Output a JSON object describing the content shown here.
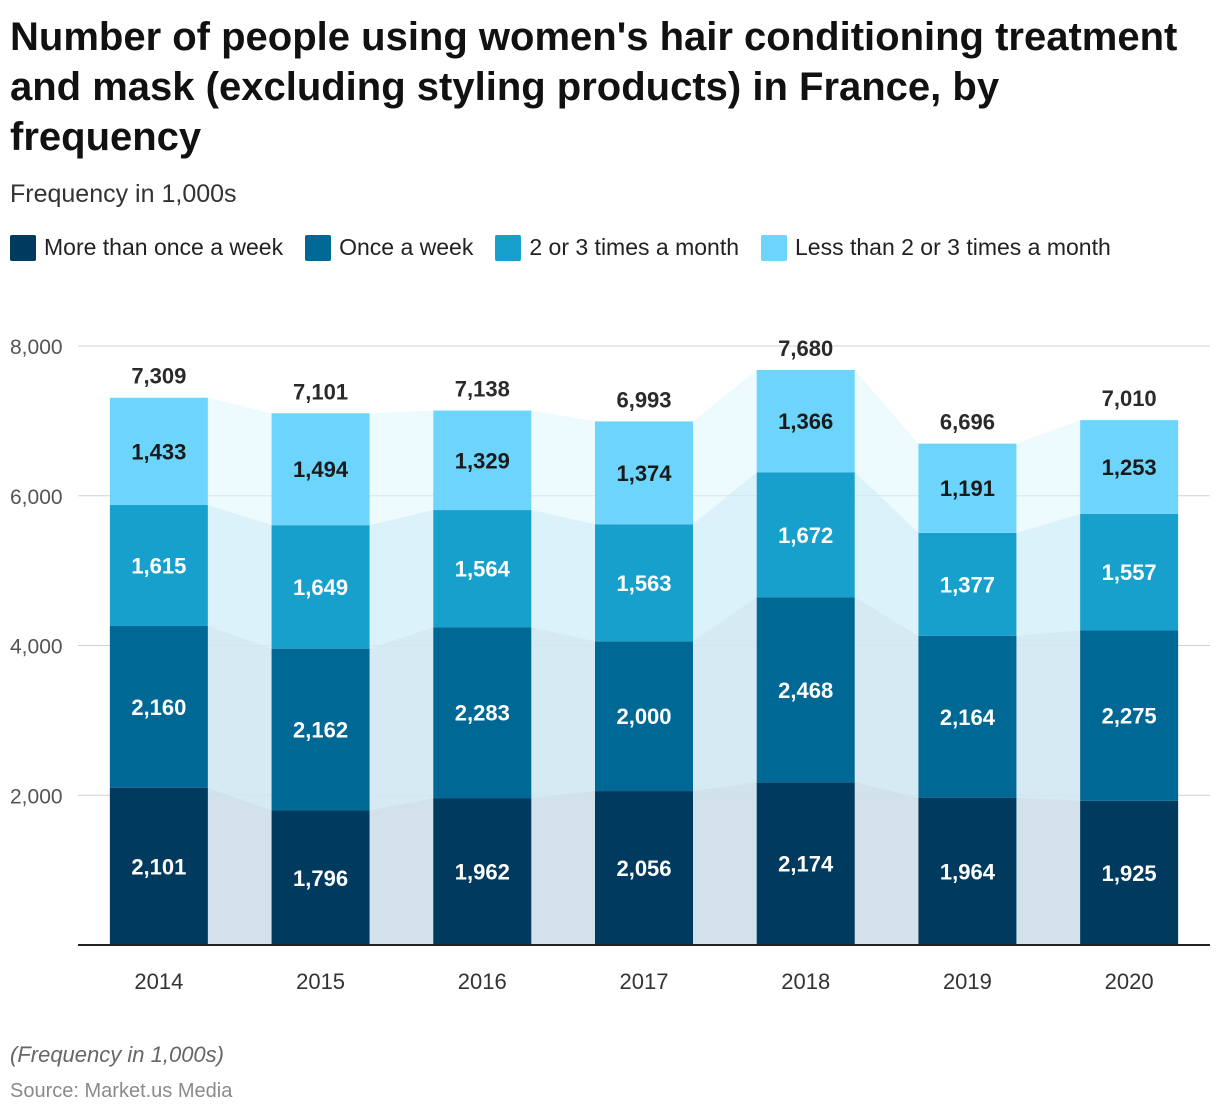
{
  "title": "Number of people using women's hair conditioning treatment and mask (excluding styling products) in France, by frequency",
  "subtitle": "Frequency in 1,000s",
  "note": "(Frequency in 1,000s)",
  "source_label": "Source:",
  "source_name": "Market.us Media",
  "chart_data": {
    "type": "bar",
    "stacked": true,
    "categories": [
      "2014",
      "2015",
      "2016",
      "2017",
      "2018",
      "2019",
      "2020"
    ],
    "series": [
      {
        "name": "More than once a week",
        "color": "#003a5e",
        "values": [
          2101,
          1796,
          1962,
          2056,
          2174,
          1964,
          1925
        ]
      },
      {
        "name": "Once a week",
        "color": "#006894",
        "values": [
          2160,
          2162,
          2283,
          2000,
          2468,
          2164,
          2275
        ]
      },
      {
        "name": "2 or 3 times a month",
        "color": "#18a0cc",
        "values": [
          1615,
          1649,
          1564,
          1563,
          1672,
          1377,
          1557
        ]
      },
      {
        "name": "Less than 2 or 3 times a month",
        "color": "#6dd5fb",
        "values": [
          1433,
          1494,
          1329,
          1374,
          1366,
          1191,
          1253
        ]
      }
    ],
    "totals": [
      7309,
      7101,
      7138,
      6993,
      7680,
      6696,
      7010
    ],
    "y_ticks": [
      2000,
      4000,
      6000,
      8000
    ],
    "ylim": [
      0,
      8000
    ],
    "grid": true,
    "legend_position": "top-left"
  }
}
